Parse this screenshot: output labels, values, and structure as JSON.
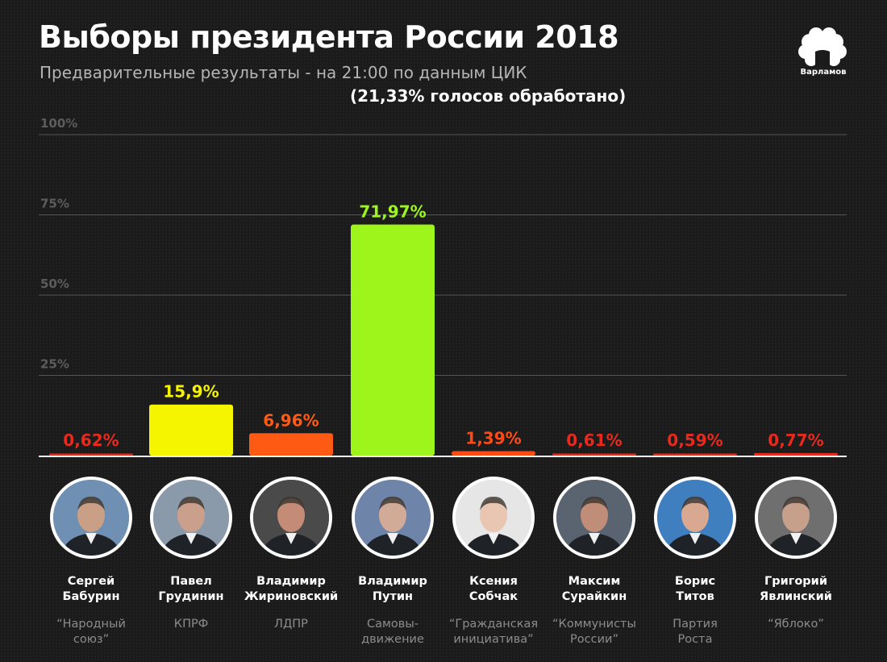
{
  "title": "Выборы президента России 2018",
  "subtitle": "Предварительные результаты - на 21:00 по данным ЦИК",
  "subnote": "(21,33% голосов обработано)",
  "logo_text": "Варламов",
  "chart_data": {
    "type": "bar",
    "title": "Выборы президента России 2018",
    "ylim": [
      0,
      100
    ],
    "yticks": [
      "100%",
      "75%",
      "50%",
      "25%"
    ],
    "ytick_values": [
      100,
      75,
      50,
      25
    ],
    "grid": true,
    "categories": [
      "Сергей Бабурин",
      "Павел Грудинин",
      "Владимир Жириновский",
      "Владимир Путин",
      "Ксения Собчак",
      "Максим Сурайкин",
      "Борис Титов",
      "Григорий Явлинский"
    ],
    "values": [
      0.62,
      15.9,
      6.96,
      71.97,
      1.39,
      0.61,
      0.59,
      0.77
    ],
    "value_labels": [
      "0,62%",
      "15,9%",
      "6,96%",
      "71,97%",
      "1,39%",
      "0,61%",
      "0,59%",
      "0,77%"
    ],
    "bar_colors": [
      "#e8291c",
      "#f5f500",
      "#ff5a14",
      "#9ef51c",
      "#ff4a14",
      "#e8291c",
      "#e8291c",
      "#e8291c"
    ],
    "label_colors": [
      "#e8291c",
      "#f5f500",
      "#ff5a14",
      "#9ef51c",
      "#ff4a14",
      "#e8291c",
      "#e8291c",
      "#e8291c"
    ]
  },
  "candidates": [
    {
      "first": "Сергей",
      "last": "Бабурин",
      "party1": "“Народный",
      "party2": "союз”",
      "bg": "#6f8fb3",
      "skin": "#c99f86"
    },
    {
      "first": "Павел",
      "last": "Грудинин",
      "party1": "КПРФ",
      "party2": "",
      "bg": "#8a9aaa",
      "skin": "#caa08c"
    },
    {
      "first": "Владимир",
      "last": "Жириновский",
      "party1": "ЛДПР",
      "party2": "",
      "bg": "#4a4a4a",
      "skin": "#c48c76"
    },
    {
      "first": "Владимир",
      "last": "Путин",
      "party1": "Самовы-",
      "party2": "движение",
      "bg": "#6e84a8",
      "skin": "#d1ab98"
    },
    {
      "first": "Ксения",
      "last": "Собчак",
      "party1": "“Гражданская",
      "party2": "инициатива”",
      "bg": "#e6e6e6",
      "skin": "#e8c6b2"
    },
    {
      "first": "Максим",
      "last": "Сурайкин",
      "party1": "“Коммунисты",
      "party2": "России”",
      "bg": "#5a6470",
      "skin": "#c08e78"
    },
    {
      "first": "Борис",
      "last": "Титов",
      "party1": "Партия",
      "party2": "Роста",
      "bg": "#3f7fbf",
      "skin": "#d8a890"
    },
    {
      "first": "Григорий",
      "last": "Явлинский",
      "party1": "“Яблоко”",
      "party2": "",
      "bg": "#6f6f6f",
      "skin": "#c7a08c"
    }
  ],
  "colors": {
    "background": "#1b1b1b",
    "grid": "#555555",
    "tick_label": "#5c5c5c",
    "baseline": "#ffffff"
  }
}
